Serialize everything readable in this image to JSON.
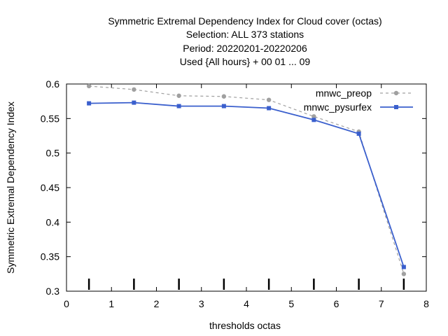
{
  "chart_data": {
    "type": "line",
    "title_lines": [
      "Symmetric Extremal Dependency Index  for Cloud cover (octas)",
      "Selection: ALL    373 stations",
      "Period: 20220201-20220206",
      "Used {All hours} + 00 01 ... 09"
    ],
    "xlabel": "thresholds octas",
    "ylabel": "Symmetric Extremal Dependency Index",
    "xlim": [
      0,
      8
    ],
    "ylim": [
      0.3,
      0.6
    ],
    "x_ticks": [
      "0",
      "1",
      "2",
      "3",
      "4",
      "5",
      "6",
      "7",
      "8"
    ],
    "y_ticks": [
      "0.3",
      "0.35",
      "0.4",
      "0.45",
      "0.5",
      "0.55",
      "0.6"
    ],
    "threshold_markers": [
      0.5,
      1.5,
      2.5,
      3.5,
      4.5,
      5.5,
      6.5,
      7.5
    ],
    "legend_position": "top-right",
    "grid": false,
    "series": [
      {
        "name": "mnwc_preop",
        "color": "#a0a0a0",
        "dash": true,
        "x": [
          0.5,
          1.5,
          2.5,
          3.5,
          4.5,
          5.5,
          6.5,
          7.5
        ],
        "values": [
          0.597,
          0.592,
          0.583,
          0.582,
          0.577,
          0.553,
          0.531,
          0.325
        ]
      },
      {
        "name": "mnwc_pysurfex",
        "color": "#3a5fcd",
        "dash": false,
        "x": [
          0.5,
          1.5,
          2.5,
          3.5,
          4.5,
          5.5,
          6.5,
          7.5
        ],
        "values": [
          0.572,
          0.573,
          0.568,
          0.568,
          0.565,
          0.548,
          0.528,
          0.335
        ]
      }
    ]
  }
}
